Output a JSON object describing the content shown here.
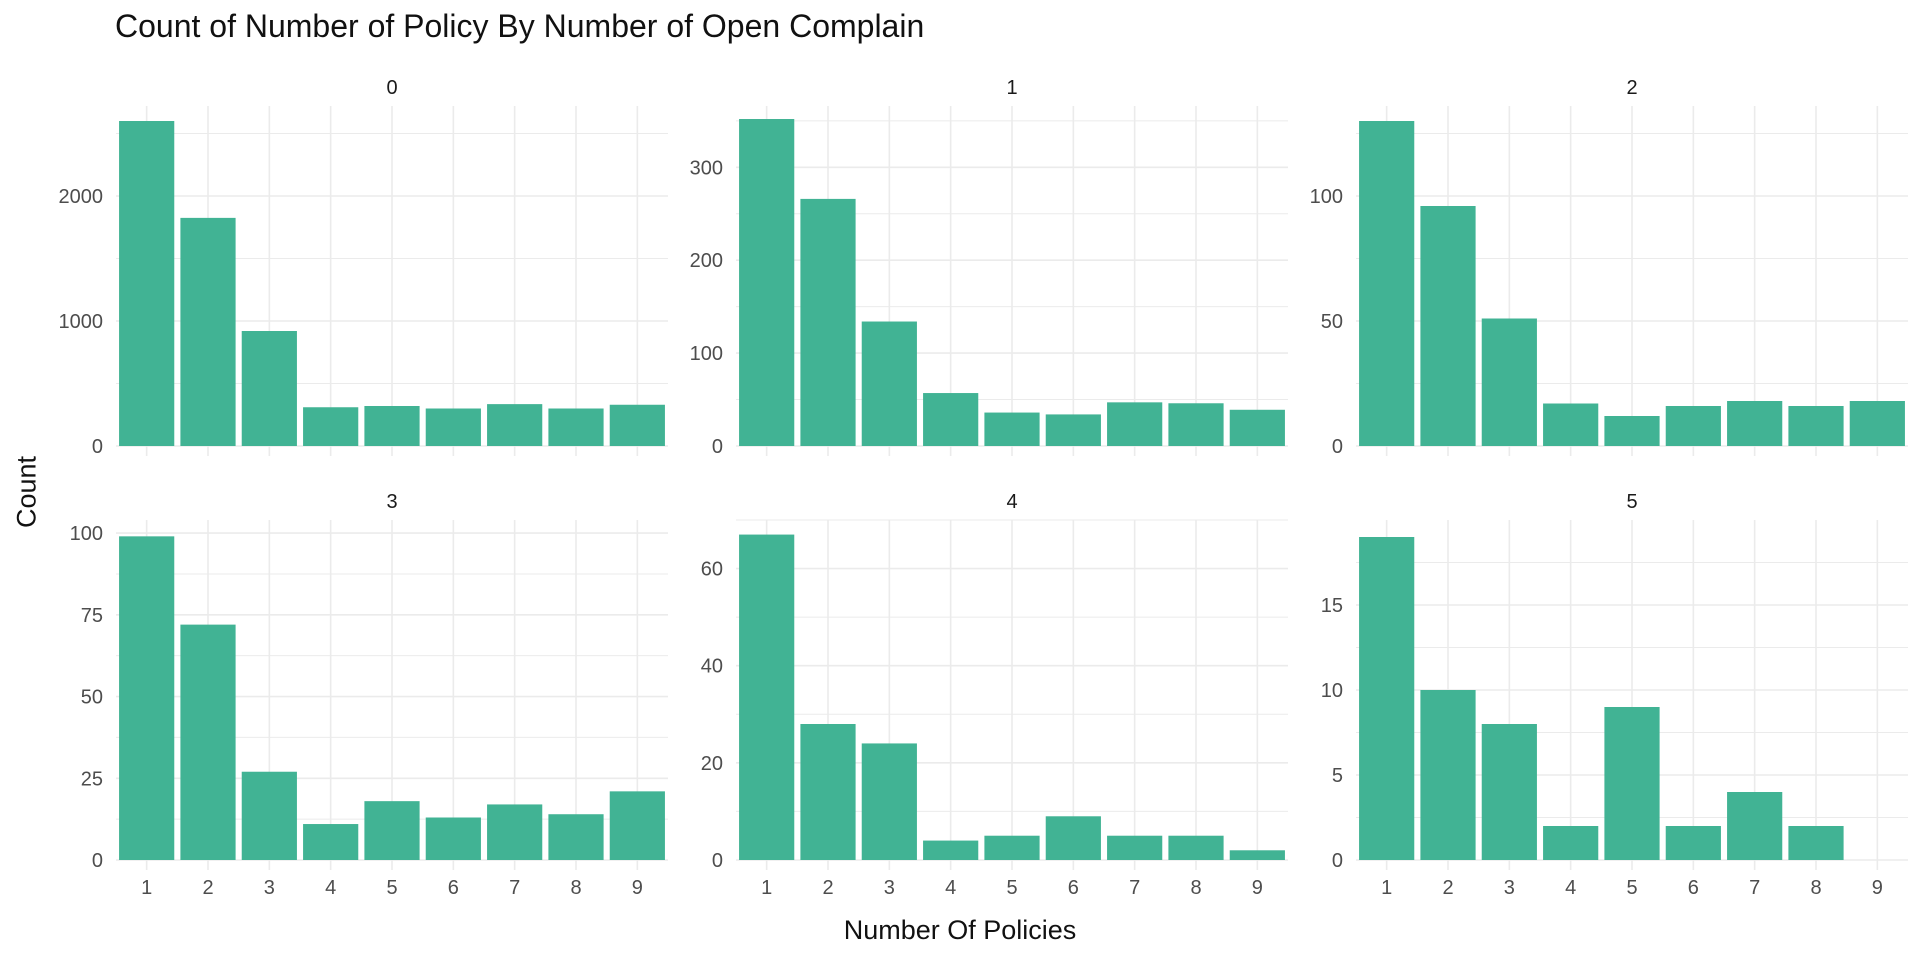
{
  "chart_data": {
    "type": "bar",
    "title": "Count of Number of Policy By Number of Open Complain",
    "xlabel": "Number Of Policies",
    "ylabel": "Count",
    "bar_color": "#41B394",
    "grid_color": "#EBEBEB",
    "grid": true,
    "categories": [
      "1",
      "2",
      "3",
      "4",
      "5",
      "6",
      "7",
      "8",
      "9"
    ],
    "facets": [
      {
        "label": "0",
        "ylim": [
          0,
          2720
        ],
        "yticks": [
          0,
          1000,
          2000
        ],
        "values": [
          2600,
          1825,
          920,
          310,
          320,
          300,
          335,
          300,
          330
        ]
      },
      {
        "label": "1",
        "ylim": [
          0,
          366
        ],
        "yticks": [
          0,
          100,
          200,
          300
        ],
        "values": [
          352,
          266,
          134,
          57,
          36,
          34,
          47,
          46,
          39
        ]
      },
      {
        "label": "2",
        "ylim": [
          0,
          136
        ],
        "yticks": [
          0,
          50,
          100
        ],
        "values": [
          130,
          96,
          51,
          17,
          12,
          16,
          18,
          16,
          18
        ]
      },
      {
        "label": "3",
        "ylim": [
          0,
          104
        ],
        "yticks": [
          0,
          25,
          50,
          75,
          100
        ],
        "values": [
          99,
          72,
          27,
          11,
          18,
          13,
          17,
          14,
          21
        ]
      },
      {
        "label": "4",
        "ylim": [
          0,
          70
        ],
        "yticks": [
          0,
          20,
          40,
          60
        ],
        "values": [
          67,
          28,
          24,
          4,
          5,
          9,
          5,
          5,
          2
        ]
      },
      {
        "label": "5",
        "ylim": [
          0,
          20
        ],
        "yticks": [
          0,
          5,
          10,
          15
        ],
        "values": [
          19,
          10,
          8,
          2,
          9,
          2,
          4,
          2,
          0
        ]
      }
    ]
  }
}
